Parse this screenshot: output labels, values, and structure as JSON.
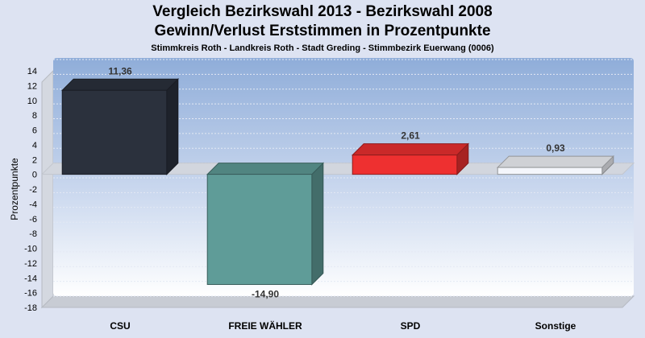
{
  "title": "Vergleich Bezirkswahl 2013 - Bezirkswahl 2008",
  "subtitle": "Gewinn/Verlust Erststimmen in Prozentpunkte",
  "subsubtitle": "Stimmkreis Roth - Landkreis Roth - Stadt Greding - Stimmbezirk Euerwang (0006)",
  "chart_data": {
    "type": "bar",
    "title": "Vergleich Bezirkswahl 2013 - Bezirkswahl 2008",
    "ylabel": "Prozentpunkte",
    "xlabel": "",
    "ylim": [
      -18,
      14
    ],
    "yticks": [
      14,
      12,
      10,
      8,
      6,
      4,
      2,
      0,
      -2,
      -4,
      -6,
      -8,
      -10,
      -12,
      -14,
      -16,
      -18
    ],
    "grid": true,
    "categories": [
      "CSU",
      "FREIE WÄHLER",
      "SPD",
      "Sonstige"
    ],
    "values": [
      11.36,
      -14.9,
      2.61,
      0.93
    ],
    "value_labels": [
      "11,36",
      "-14,90",
      "2,61",
      "0,93"
    ],
    "colors": [
      "#2b313d",
      "#5f9c98",
      "#ee3030",
      "#f4f6fb"
    ]
  }
}
